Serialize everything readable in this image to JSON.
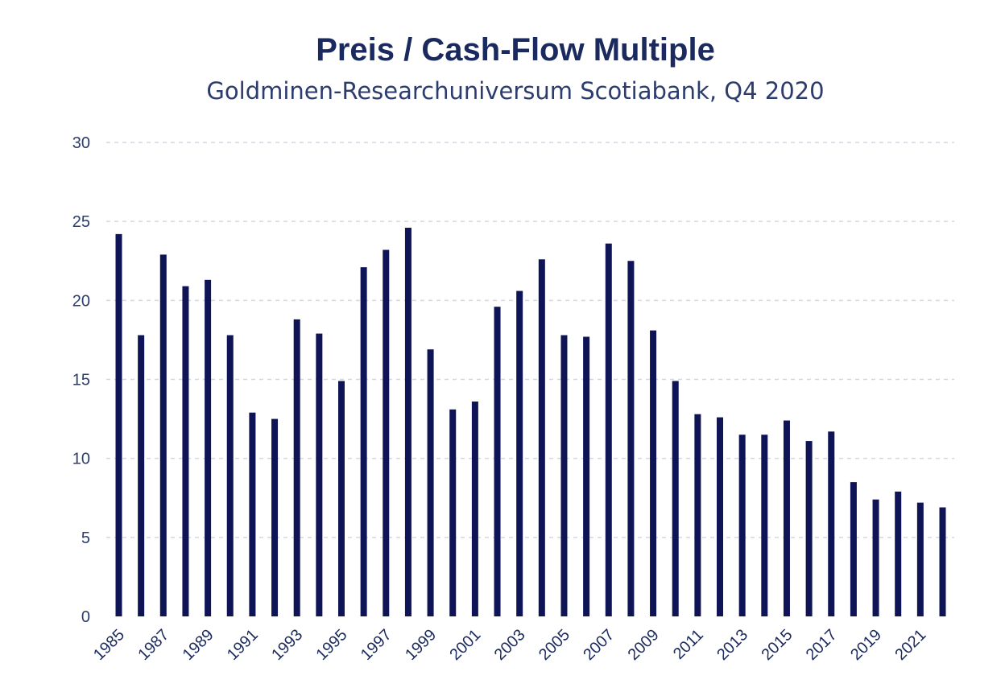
{
  "chart_data": {
    "type": "bar",
    "title": "Preis / Cash-Flow Multiple",
    "subtitle": "Goldminen-Researchuniversum Scotiabank, Q4 2020",
    "xlabel": "",
    "ylabel": "",
    "ylim": [
      0,
      30
    ],
    "yticks": [
      0,
      5,
      10,
      15,
      20,
      25,
      30
    ],
    "grid": true,
    "legend": "none",
    "bar_color": "#0f1456",
    "categories": [
      "1985",
      "1986",
      "1987",
      "1988",
      "1989",
      "1990",
      "1991",
      "1992",
      "1993",
      "1994",
      "1995",
      "1996",
      "1997",
      "1998",
      "1999",
      "2000",
      "2001",
      "2002",
      "2003",
      "2004",
      "2005",
      "2006",
      "2007",
      "2008",
      "2009",
      "2010",
      "2011",
      "2012",
      "2013",
      "2014",
      "2015",
      "2016",
      "2017",
      "2018",
      "2019",
      "2020",
      "2021",
      "2022"
    ],
    "category_labels": [
      "1985",
      "",
      "1987",
      "",
      "1989",
      "",
      "1991",
      "",
      "1993",
      "",
      "1995",
      "",
      "1997",
      "",
      "1999",
      "",
      "2001",
      "",
      "2003",
      "",
      "2005",
      "",
      "2007",
      "",
      "2009",
      "",
      "2011",
      "",
      "2013",
      "",
      "2015",
      "",
      "2017",
      "",
      "2019",
      "",
      "2021",
      ""
    ],
    "values": [
      24.2,
      17.8,
      22.9,
      20.9,
      21.3,
      17.8,
      12.9,
      12.5,
      18.8,
      17.9,
      14.9,
      22.1,
      23.2,
      24.6,
      16.9,
      13.1,
      13.6,
      19.6,
      20.6,
      22.6,
      17.8,
      17.7,
      23.6,
      22.5,
      18.1,
      14.9,
      12.8,
      12.6,
      11.5,
      11.5,
      12.4,
      11.1,
      11.7,
      8.5,
      7.4,
      7.9,
      7.2,
      6.9
    ]
  }
}
